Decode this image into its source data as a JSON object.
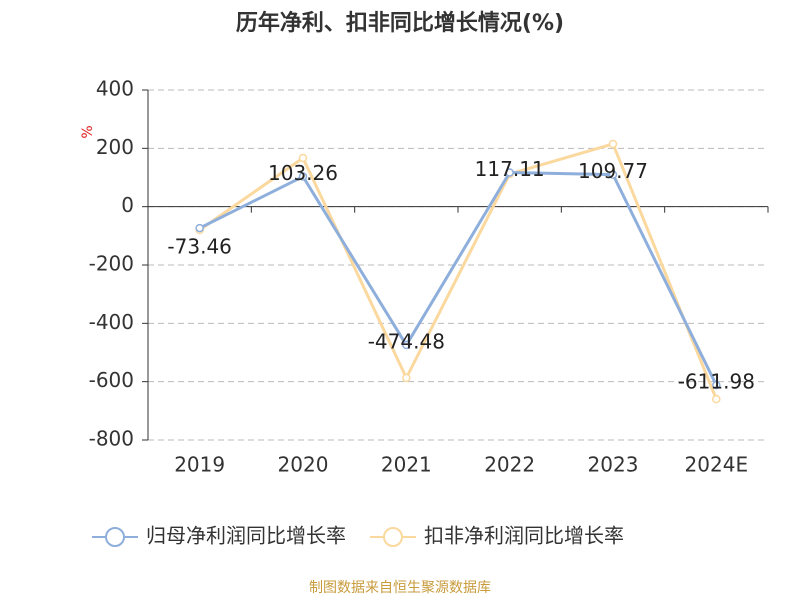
{
  "chart_data": {
    "type": "line",
    "title": "历年净利、扣非同比增长情况(%)",
    "y_label": "%",
    "categories": [
      "2019",
      "2020",
      "2021",
      "2022",
      "2023",
      "2024E"
    ],
    "series": [
      {
        "name": "归母净利润同比增长率",
        "color": "#8eaedb",
        "values": [
          -73.46,
          103.26,
          -474.48,
          117.11,
          109.77,
          -611.98
        ],
        "data_labels": true
      },
      {
        "name": "扣非净利润同比增长率",
        "color": "#fbd89e",
        "values": [
          -80,
          167,
          -587,
          112,
          215,
          -660
        ],
        "data_labels": false
      }
    ],
    "ylim": [
      -800,
      400
    ],
    "yticks": [
      -800,
      -600,
      -400,
      -200,
      0,
      200,
      400
    ],
    "grid": true,
    "legend": "bottom",
    "source": "制图数据来自恒生聚源数据库"
  }
}
